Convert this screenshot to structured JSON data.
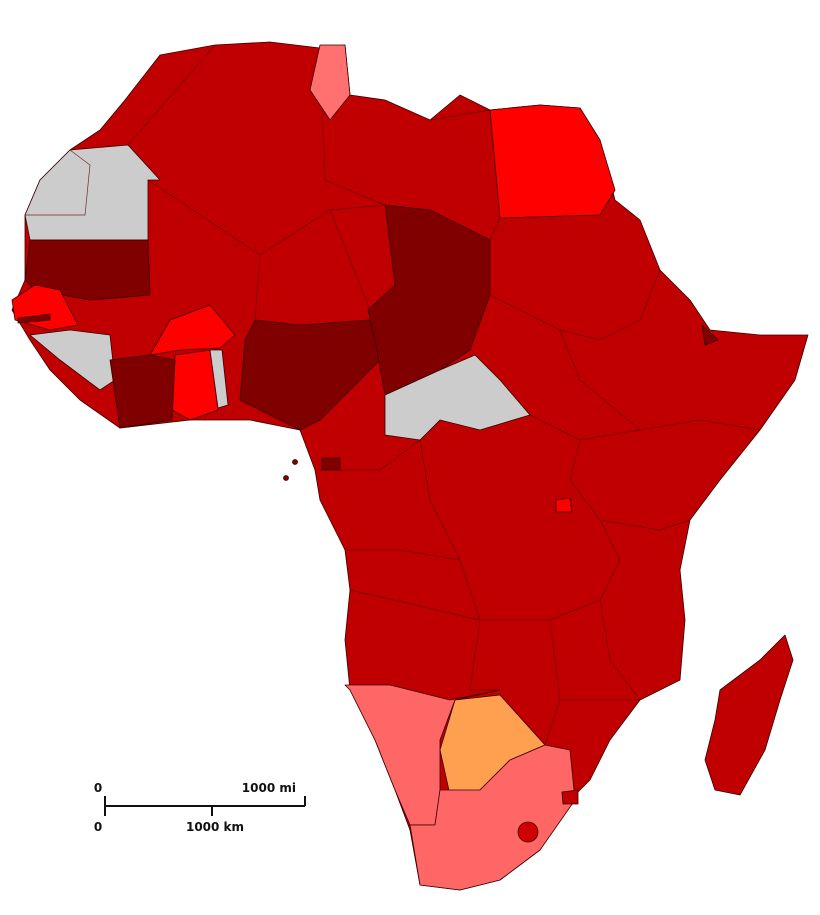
{
  "scale_bar": {
    "miles": {
      "start": "0",
      "end": "1000 mi"
    },
    "kilometers": {
      "start": "0",
      "end": "1000 km"
    }
  }
}
